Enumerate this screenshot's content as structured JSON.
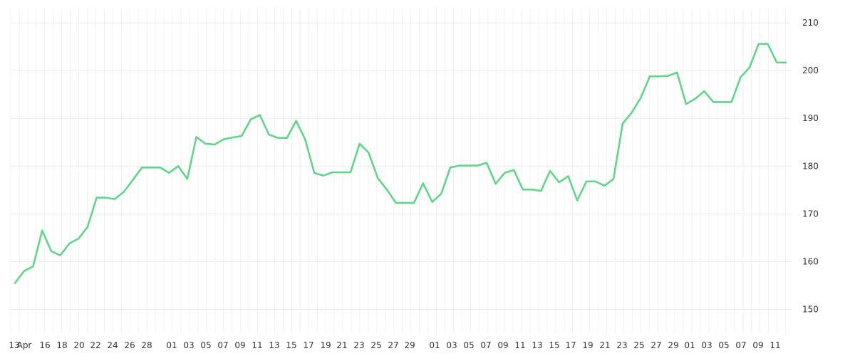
{
  "chart_data": {
    "type": "line",
    "title": "",
    "xlabel": "",
    "ylabel": "",
    "ylim": [
      145,
      213
    ],
    "y_ticks": [
      150,
      160,
      170,
      180,
      190,
      200,
      210
    ],
    "y_axis_position": "right",
    "grid": true,
    "line_color": "#5fd68a",
    "x_tick_labels": [
      "13",
      "Apr",
      "16",
      "18",
      "20",
      "22",
      "24",
      "26",
      "28",
      "01",
      "03",
      "05",
      "07",
      "09",
      "11",
      "13",
      "15",
      "17",
      "19",
      "21",
      "23",
      "25",
      "27",
      "29",
      "01",
      "03",
      "05",
      "07",
      "09",
      "11",
      "13",
      "15",
      "17",
      "19",
      "21",
      "23",
      "25",
      "27",
      "29",
      "01",
      "03",
      "05",
      "07",
      "09",
      "11"
    ],
    "series": [
      {
        "values": [
          155.5,
          158.0,
          159.0,
          166.5,
          162.2,
          161.3,
          163.8,
          164.8,
          167.2,
          173.4,
          173.4,
          173.1,
          174.6,
          177.1,
          179.7,
          179.7,
          179.7,
          178.6,
          180.0,
          177.3,
          186.1,
          184.7,
          184.5,
          185.6,
          186.0,
          186.3,
          189.8,
          190.7,
          186.6,
          185.9,
          185.9,
          189.5,
          185.6,
          178.6,
          178.0,
          178.7,
          178.7,
          178.7,
          184.7,
          182.8,
          177.5,
          175.1,
          172.3,
          172.3,
          172.3,
          176.4,
          172.5,
          174.2,
          179.7,
          180.1,
          180.1,
          180.1,
          180.7,
          176.3,
          178.6,
          179.2,
          175.1,
          175.1,
          174.8,
          179.0,
          176.6,
          177.9,
          172.8,
          176.8,
          176.8,
          175.9,
          177.3,
          188.9,
          191.2,
          194.3,
          198.8,
          198.8,
          198.9,
          199.6,
          193.0,
          194.1,
          195.7,
          193.4,
          193.4,
          193.4,
          198.6,
          200.7,
          205.6,
          205.6,
          201.7,
          201.7
        ]
      }
    ]
  }
}
